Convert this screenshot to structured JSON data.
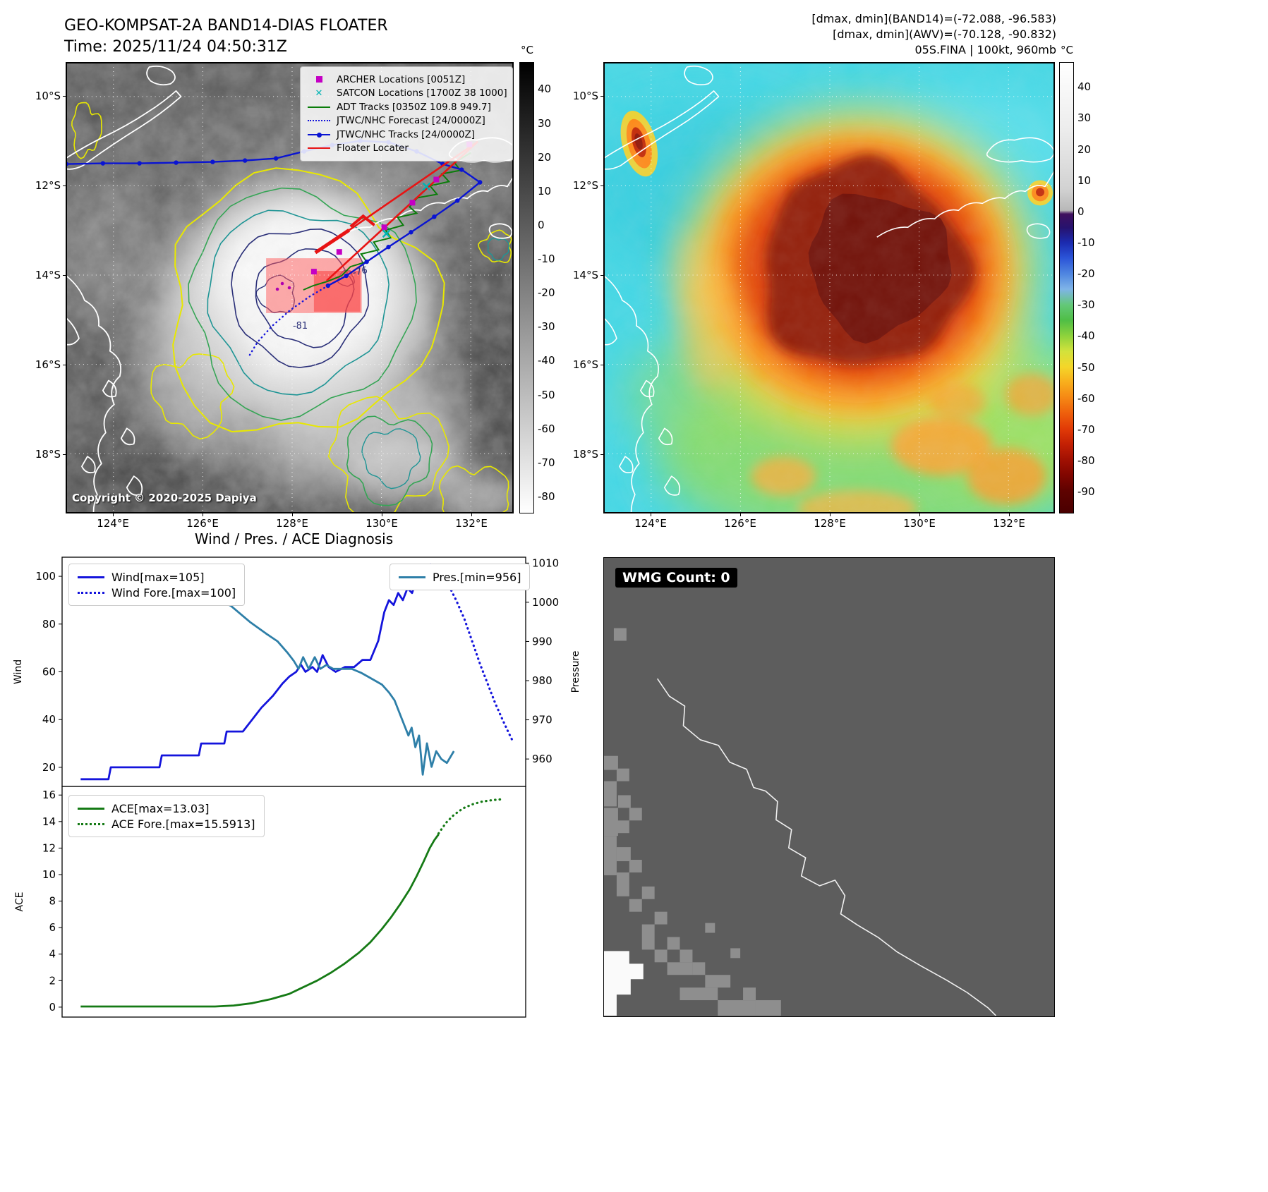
{
  "header_left": {
    "line1": "GEO-KOMPSAT-2A BAND14-DIAS FLOATER",
    "line2": "Time: 2025/11/24 04:50:31Z"
  },
  "header_right": {
    "line1": "[dmax, dmin](BAND14)=(-72.088, -96.583)",
    "line2": "[dmax, dmin](AWV)=(-70.128, -90.832)",
    "line3": "05S.FINA | 100kt, 960mb"
  },
  "diagnosis_title": "Wind / Pres. / ACE Diagnosis",
  "wmg": {
    "label": "WMG Count: 0"
  },
  "colors": {
    "wind": "#1414dc",
    "pressure": "#2e7fa8",
    "ace": "#157a15",
    "archer": "#c400c4",
    "satcon": "#00b4b4",
    "adt": "#0a7d0a",
    "jtwc_track": "#0a14d2",
    "jtwc_forecast": "#1414dc",
    "floater": "#e81414"
  },
  "maps": {
    "lat_ticks": [
      "10°S",
      "12°S",
      "14°S",
      "16°S",
      "18°S"
    ],
    "lon_ticks": [
      "124°E",
      "126°E",
      "128°E",
      "130°E",
      "132°E"
    ],
    "left": {
      "unit": "°C",
      "colorbar_ticks": [
        40,
        30,
        20,
        10,
        0,
        -10,
        -20,
        -30,
        -40,
        -50,
        -60,
        -70,
        -80
      ],
      "copyright": "Copyright © 2020-2025 Dapiya",
      "contour_labels": [
        "-76",
        "-81"
      ],
      "legend": [
        {
          "label": "ARCHER Locations [0051Z]",
          "type": "square",
          "color": "#c400c4"
        },
        {
          "label": "SATCON Locations [1700Z 38 1000]",
          "type": "x",
          "color": "#00b4b4"
        },
        {
          "label": "ADT Tracks [0350Z 109.8 949.7]",
          "type": "line",
          "color": "#0a7d0a"
        },
        {
          "label": "JTWC/NHC Forecast [24/0000Z]",
          "type": "dotted",
          "color": "#1414dc"
        },
        {
          "label": "JTWC/NHC Tracks [24/0000Z]",
          "type": "line-marker",
          "color": "#0a14d2"
        },
        {
          "label": "Floater Locater",
          "type": "line",
          "color": "#e81414"
        }
      ]
    },
    "right": {
      "unit": "°C",
      "colorbar_ticks": [
        40,
        30,
        20,
        10,
        0,
        -10,
        -20,
        -30,
        -40,
        -50,
        -60,
        -70,
        -80,
        -90
      ]
    }
  },
  "chart_data": [
    {
      "type": "line",
      "panel": "wind_pressure",
      "title": "Wind / Pres. / ACE Diagnosis",
      "xlim": [
        0,
        1
      ],
      "ylabel_left": "Wind",
      "yticks_left": [
        20,
        40,
        60,
        80,
        100
      ],
      "ylim_left": [
        12,
        108
      ],
      "ylabel_right": "Pressure",
      "yticks_right": [
        960,
        970,
        980,
        990,
        1000,
        1010
      ],
      "ylim_right": [
        953,
        1011.5
      ],
      "series": [
        {
          "name": "Wind[max=105]",
          "color": "#1414dc",
          "style": "solid",
          "axis": "left",
          "points": [
            [
              0.04,
              15
            ],
            [
              0.1,
              15
            ],
            [
              0.105,
              20
            ],
            [
              0.21,
              20
            ],
            [
              0.215,
              25
            ],
            [
              0.295,
              25
            ],
            [
              0.3,
              30
            ],
            [
              0.35,
              30
            ],
            [
              0.355,
              35
            ],
            [
              0.39,
              35
            ],
            [
              0.41,
              40
            ],
            [
              0.43,
              45
            ],
            [
              0.455,
              50
            ],
            [
              0.475,
              55
            ],
            [
              0.49,
              58
            ],
            [
              0.505,
              60
            ],
            [
              0.515,
              63
            ],
            [
              0.525,
              60
            ],
            [
              0.54,
              62
            ],
            [
              0.55,
              60
            ],
            [
              0.562,
              67
            ],
            [
              0.575,
              62
            ],
            [
              0.59,
              60
            ],
            [
              0.61,
              62
            ],
            [
              0.63,
              62
            ],
            [
              0.648,
              65
            ],
            [
              0.665,
              65
            ],
            [
              0.682,
              73
            ],
            [
              0.695,
              85
            ],
            [
              0.705,
              90
            ],
            [
              0.715,
              88
            ],
            [
              0.725,
              93
            ],
            [
              0.735,
              90
            ],
            [
              0.745,
              95
            ],
            [
              0.755,
              93
            ],
            [
              0.765,
              99
            ],
            [
              0.775,
              96
            ],
            [
              0.786,
              102
            ],
            [
              0.795,
              105
            ],
            [
              0.805,
              101
            ],
            [
              0.815,
              100
            ]
          ]
        },
        {
          "name": "Wind Fore.[max=100]",
          "color": "#1414dc",
          "style": "dotted",
          "axis": "left",
          "points": [
            [
              0.815,
              100
            ],
            [
              0.832,
              97
            ],
            [
              0.85,
              90
            ],
            [
              0.868,
              82
            ],
            [
              0.886,
              72
            ],
            [
              0.902,
              63
            ],
            [
              0.918,
              55
            ],
            [
              0.934,
              47
            ],
            [
              0.95,
              40
            ],
            [
              0.962,
              35
            ],
            [
              0.972,
              31
            ]
          ]
        },
        {
          "name": "Pres.[min=956]",
          "color": "#2e7fa8",
          "style": "solid",
          "axis": "right",
          "points": [
            [
              0.04,
              1006
            ],
            [
              0.18,
              1005
            ],
            [
              0.27,
              1004
            ],
            [
              0.32,
              1002
            ],
            [
              0.365,
              999
            ],
            [
              0.405,
              995
            ],
            [
              0.44,
              992
            ],
            [
              0.465,
              990
            ],
            [
              0.487,
              987
            ],
            [
              0.5,
              985
            ],
            [
              0.51,
              983
            ],
            [
              0.52,
              986
            ],
            [
              0.532,
              983
            ],
            [
              0.545,
              986
            ],
            [
              0.557,
              983
            ],
            [
              0.57,
              984
            ],
            [
              0.585,
              983
            ],
            [
              0.605,
              983
            ],
            [
              0.625,
              983
            ],
            [
              0.645,
              982
            ],
            [
              0.66,
              981
            ],
            [
              0.675,
              980
            ],
            [
              0.69,
              979
            ],
            [
              0.705,
              977
            ],
            [
              0.717,
              975
            ],
            [
              0.727,
              972
            ],
            [
              0.737,
              969
            ],
            [
              0.747,
              966
            ],
            [
              0.754,
              968
            ],
            [
              0.762,
              963
            ],
            [
              0.77,
              966
            ],
            [
              0.778,
              956
            ],
            [
              0.787,
              964
            ],
            [
              0.797,
              958
            ],
            [
              0.807,
              962
            ],
            [
              0.818,
              960
            ],
            [
              0.83,
              959
            ],
            [
              0.845,
              962
            ]
          ]
        }
      ]
    },
    {
      "type": "line",
      "panel": "ace",
      "xlim": [
        0,
        1
      ],
      "ylabel_left": "ACE",
      "yticks_left": [
        0,
        2,
        4,
        6,
        8,
        10,
        12,
        14,
        16
      ],
      "ylim_left": [
        -0.75,
        16.65
      ],
      "series": [
        {
          "name": "ACE[max=13.03]",
          "color": "#157a15",
          "style": "solid",
          "axis": "left",
          "points": [
            [
              0.04,
              0.05
            ],
            [
              0.33,
              0.05
            ],
            [
              0.37,
              0.12
            ],
            [
              0.41,
              0.3
            ],
            [
              0.45,
              0.6
            ],
            [
              0.49,
              1.0
            ],
            [
              0.52,
              1.5
            ],
            [
              0.55,
              2.0
            ],
            [
              0.58,
              2.6
            ],
            [
              0.61,
              3.3
            ],
            [
              0.64,
              4.1
            ],
            [
              0.665,
              4.9
            ],
            [
              0.69,
              5.9
            ],
            [
              0.71,
              6.8
            ],
            [
              0.73,
              7.8
            ],
            [
              0.75,
              8.9
            ],
            [
              0.765,
              9.9
            ],
            [
              0.78,
              11.0
            ],
            [
              0.793,
              12.0
            ],
            [
              0.803,
              12.6
            ],
            [
              0.812,
              13.03
            ]
          ]
        },
        {
          "name": "ACE Fore.[max=15.5913]",
          "color": "#157a15",
          "style": "dotted",
          "axis": "left",
          "points": [
            [
              0.812,
              13.1
            ],
            [
              0.828,
              13.9
            ],
            [
              0.845,
              14.5
            ],
            [
              0.865,
              15.0
            ],
            [
              0.885,
              15.3
            ],
            [
              0.905,
              15.5
            ],
            [
              0.928,
              15.62
            ],
            [
              0.952,
              15.7
            ]
          ]
        }
      ]
    }
  ]
}
